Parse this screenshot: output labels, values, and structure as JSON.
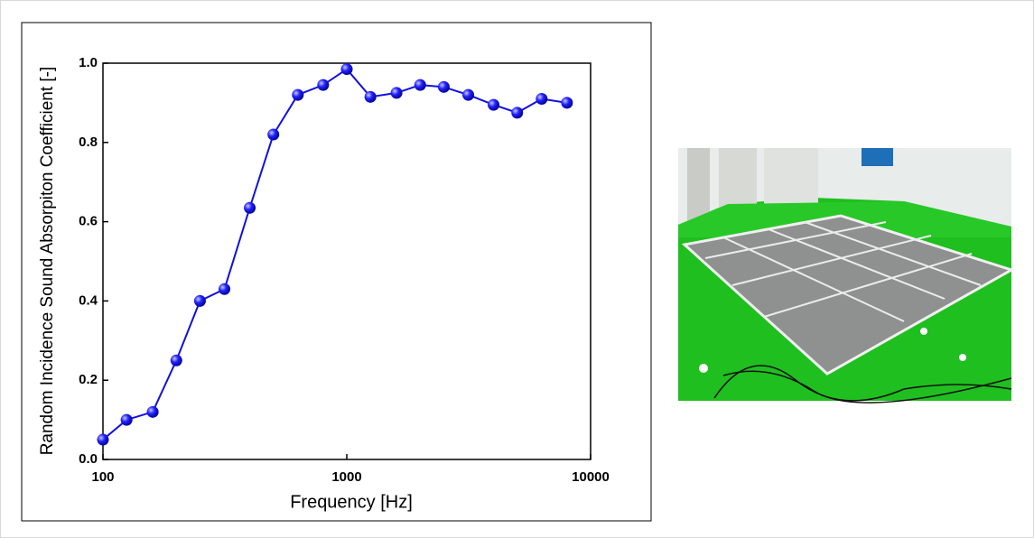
{
  "chart_data": {
    "type": "line",
    "x_label": "Frequency [Hz]",
    "y_label": "Random Incidence Sound Absorpiton Coefficient [-]",
    "x": [
      100,
      125,
      160,
      200,
      250,
      315,
      400,
      500,
      630,
      800,
      1000,
      1250,
      1600,
      2000,
      2500,
      3150,
      4000,
      5000,
      6300,
      8000
    ],
    "values": [
      0.05,
      0.1,
      0.12,
      0.25,
      0.4,
      0.43,
      0.635,
      0.82,
      0.92,
      0.945,
      0.985,
      0.915,
      0.925,
      0.945,
      0.94,
      0.92,
      0.895,
      0.875,
      0.91,
      0.9
    ],
    "color": "#1010e0",
    "xlim": [
      100,
      10000
    ],
    "xticks": [
      100,
      1000,
      10000
    ],
    "xscale": "log",
    "ylim": [
      0,
      1
    ],
    "yticks": [
      {
        "value": 0,
        "label": "0.0"
      },
      0.2,
      0.4,
      0.6,
      0.8,
      {
        "value": 1,
        "label": "1.0"
      }
    ]
  }
}
